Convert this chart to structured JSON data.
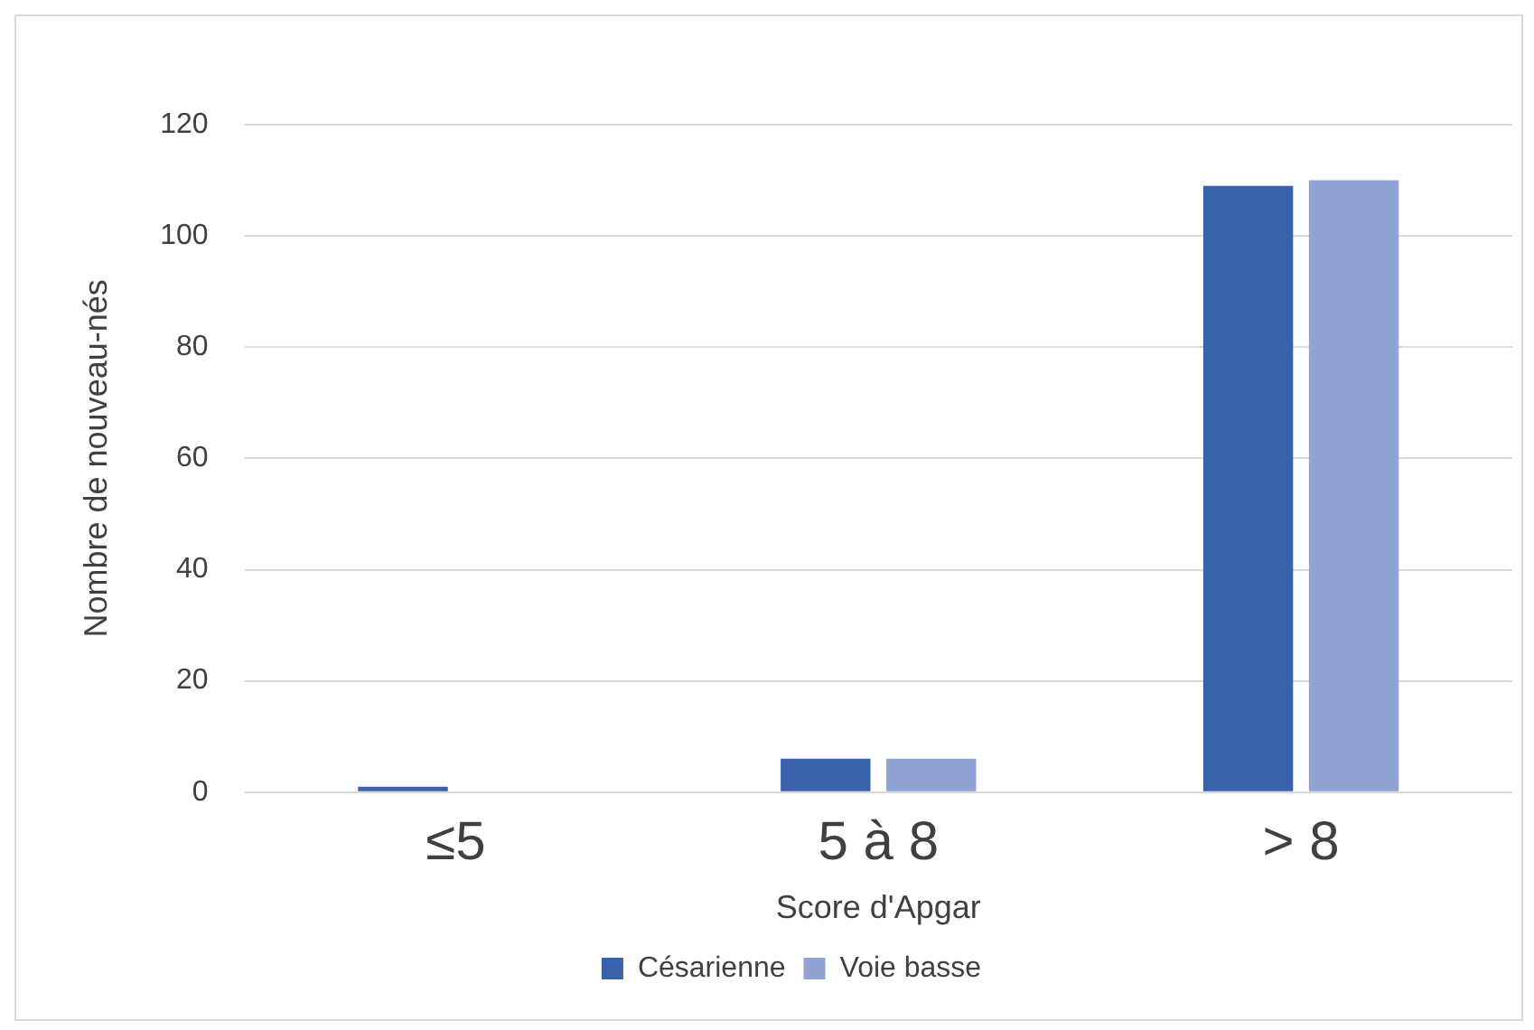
{
  "chart_data": {
    "type": "bar",
    "xlabel": "Score d'Apgar",
    "ylabel": "Nombre de nouveau-nés",
    "categories": [
      "≤5",
      "5 à 8",
      "> 8"
    ],
    "series": [
      {
        "name": "Césarienne",
        "color": "#3a62ab",
        "values": [
          1,
          6,
          109
        ]
      },
      {
        "name": "Voie basse",
        "color": "#8fa3d5",
        "values": [
          0,
          6,
          110
        ]
      }
    ],
    "ylim": [
      0,
      120
    ],
    "yticks": [
      0,
      20,
      40,
      60,
      80,
      100,
      120
    ],
    "grid": "y",
    "legend": "bottom"
  }
}
